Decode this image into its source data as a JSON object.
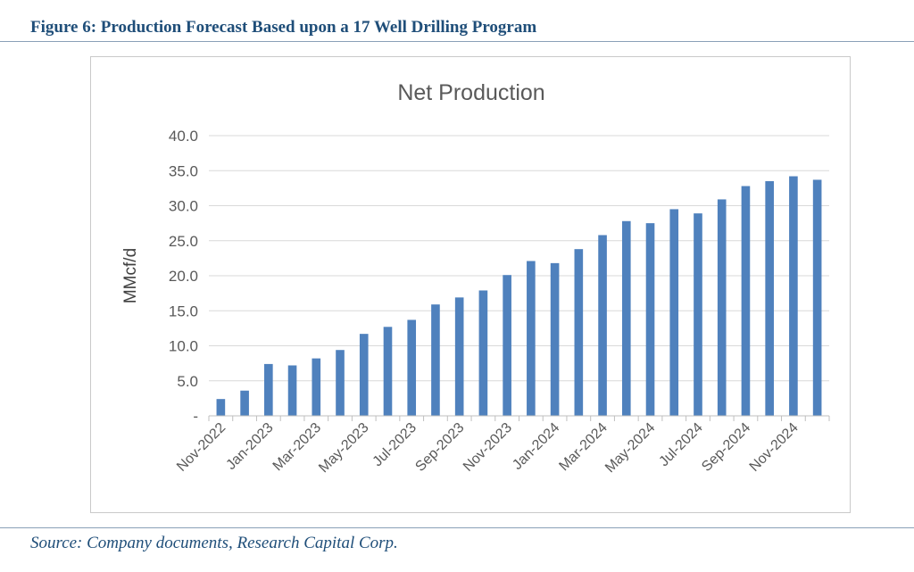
{
  "figure": {
    "caption": "Figure 6:  Production Forecast Based upon a 17 Well Drilling Program",
    "source": "Source: Company documents, Research Capital Corp."
  },
  "colors": {
    "bar": "#4f81bd",
    "caption": "#1f4e79",
    "grid": "#d9d9d9"
  },
  "chart_data": {
    "type": "bar",
    "title": "Net Production",
    "xlabel": "",
    "ylabel": "MMcf/d",
    "ylim": [
      0,
      40
    ],
    "yticks": [
      0,
      5,
      10,
      15,
      20,
      25,
      30,
      35,
      40
    ],
    "ytick_labels": [
      "-",
      "5.0",
      "10.0",
      "15.0",
      "20.0",
      "25.0",
      "30.0",
      "35.0",
      "40.0"
    ],
    "grid": true,
    "legend": "none",
    "categories": [
      "Nov-2022",
      "Dec-2022",
      "Jan-2023",
      "Feb-2023",
      "Mar-2023",
      "Apr-2023",
      "May-2023",
      "Jun-2023",
      "Jul-2023",
      "Aug-2023",
      "Sep-2023",
      "Oct-2023",
      "Nov-2023",
      "Dec-2023",
      "Jan-2024",
      "Feb-2024",
      "Mar-2024",
      "Apr-2024",
      "May-2024",
      "Jun-2024",
      "Jul-2024",
      "Aug-2024",
      "Sep-2024",
      "Oct-2024",
      "Nov-2024",
      "Dec-2024"
    ],
    "xtick_labels": [
      "Nov-2022",
      "Jan-2023",
      "Mar-2023",
      "May-2023",
      "Jul-2023",
      "Sep-2023",
      "Nov-2023",
      "Jan-2024",
      "Mar-2024",
      "May-2024",
      "Jul-2024",
      "Sep-2024",
      "Nov-2024"
    ],
    "values": [
      2.4,
      3.6,
      7.4,
      7.2,
      8.2,
      9.4,
      11.7,
      12.7,
      13.7,
      15.9,
      16.9,
      17.9,
      20.1,
      22.1,
      21.8,
      23.8,
      25.8,
      27.8,
      27.5,
      29.5,
      28.9,
      30.9,
      32.8,
      33.5,
      34.2,
      33.7
    ]
  }
}
